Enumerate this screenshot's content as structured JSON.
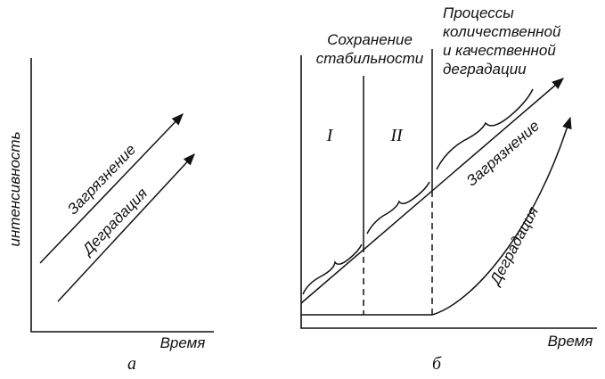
{
  "panel_a": {
    "y_axis_label": "интенсивность",
    "x_axis_label": "Время",
    "lines": [
      {
        "label": "Загрязнение"
      },
      {
        "label": "Деградация"
      }
    ],
    "caption": "а"
  },
  "panel_b": {
    "x_axis_label": "Время",
    "zones": [
      {
        "label": "I"
      },
      {
        "label": "II"
      }
    ],
    "headers": [
      {
        "lines": [
          "Сохранение",
          "стабильности"
        ]
      },
      {
        "lines": [
          "Процессы",
          "количественной",
          "и качественной",
          "деградации"
        ]
      }
    ],
    "lines": [
      {
        "label": "Загрязнение"
      },
      {
        "label": "Деградация"
      }
    ],
    "caption": "б"
  }
}
